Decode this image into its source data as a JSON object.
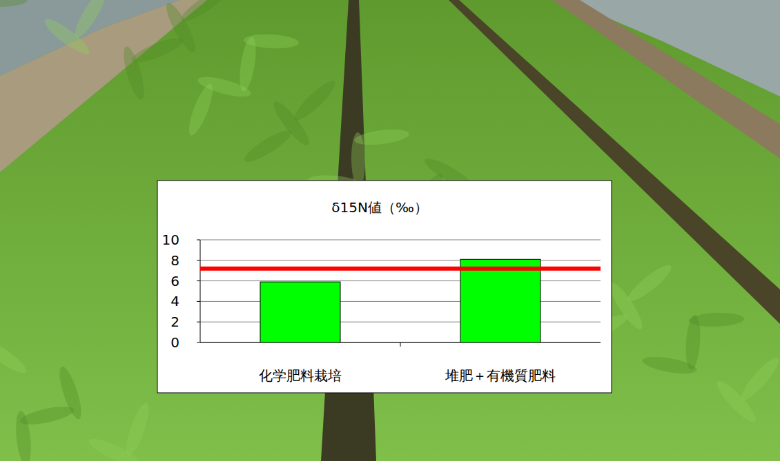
{
  "chart_data": {
    "type": "bar",
    "title": "δ15N値（‰）",
    "categories": [
      "化学肥料栽培",
      "堆肥＋有機質肥料"
    ],
    "values": [
      5.9,
      8.1
    ],
    "color": "#00ff00",
    "ylim": [
      0,
      10
    ],
    "yticks": [
      0,
      2,
      4,
      6,
      8,
      10
    ],
    "grid": true,
    "reference_line": 7.2
  }
}
